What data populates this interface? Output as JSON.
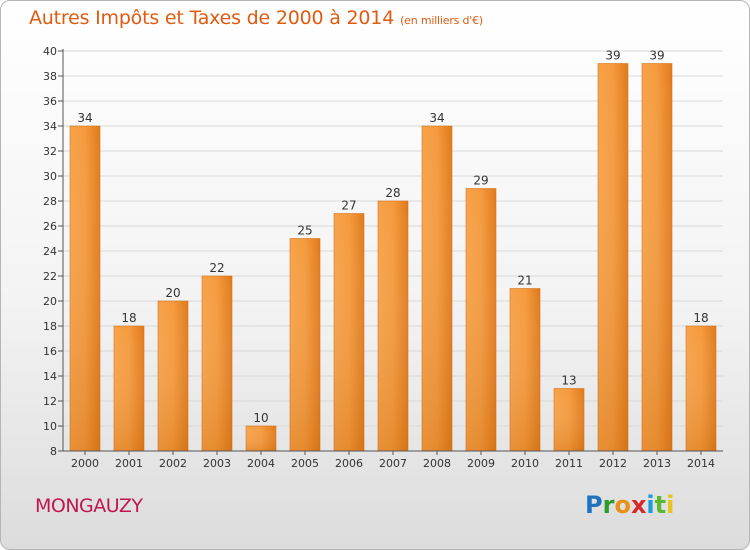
{
  "chart_data": {
    "type": "bar",
    "title": "Autres Impôts et Taxes de 2000 à 2014",
    "subtitle": "(en milliers d'€)",
    "categories": [
      "2000",
      "2001",
      "2002",
      "2003",
      "2004",
      "2005",
      "2006",
      "2007",
      "2008",
      "2009",
      "2010",
      "2011",
      "2012",
      "2013",
      "2014"
    ],
    "values": [
      34,
      18,
      20,
      22,
      10,
      25,
      27,
      28,
      34,
      29,
      21,
      13,
      39,
      39,
      18
    ],
    "ylim": [
      8,
      40
    ],
    "yticks": [
      8,
      10,
      12,
      14,
      16,
      18,
      20,
      22,
      24,
      26,
      28,
      30,
      32,
      34,
      36,
      38,
      40
    ],
    "grid": true,
    "bar_color": "#f0892a"
  },
  "commune": "MONGAUZY",
  "logo": {
    "text": "Proxiti"
  }
}
